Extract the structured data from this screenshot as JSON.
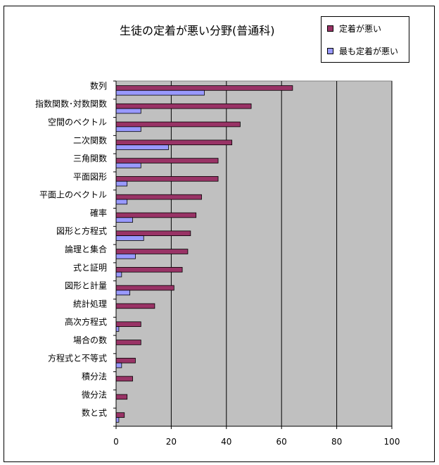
{
  "chart_data": {
    "type": "bar",
    "orientation": "horizontal",
    "title": "生徒の定着が悪い分野(普通科)",
    "categories": [
      "数列",
      "指数関数･対数関数",
      "空間のベクトル",
      "二次関数",
      "三角関数",
      "平面図形",
      "平面上のベクトル",
      "確率",
      "図形と方程式",
      "論理と集合",
      "式と証明",
      "図形と計量",
      "統計処理",
      "高次方程式",
      "場合の数",
      "方程式と不等式",
      "積分法",
      "微分法",
      "数と式"
    ],
    "series": [
      {
        "name": "定着が悪い",
        "color": "#993366",
        "values": [
          64,
          49,
          45,
          42,
          37,
          37,
          31,
          29,
          27,
          26,
          24,
          21,
          14,
          9,
          9,
          7,
          6,
          4,
          3
        ]
      },
      {
        "name": "最も定着が悪い",
        "color": "#9999ff",
        "values": [
          32,
          9,
          9,
          19,
          9,
          4,
          4,
          6,
          10,
          7,
          2,
          5,
          0,
          1,
          0,
          2,
          0,
          0,
          1
        ]
      }
    ],
    "xlim": [
      0,
      100
    ],
    "xticks": [
      0,
      20,
      40,
      60,
      80,
      100
    ],
    "plot_background": "#c0c0c0",
    "grid": true,
    "legend_position": "top-right"
  }
}
